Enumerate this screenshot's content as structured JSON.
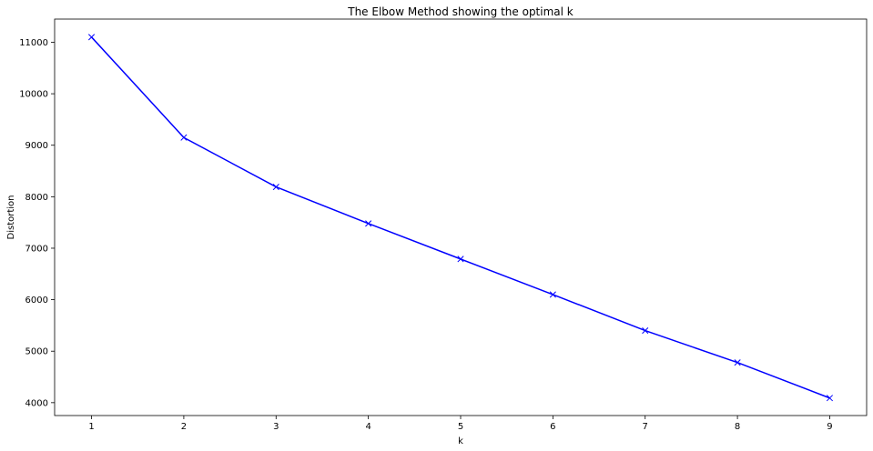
{
  "chart_data": {
    "type": "line",
    "title": "The Elbow Method showing the optimal k",
    "xlabel": "k",
    "ylabel": "Distortion",
    "x": [
      1,
      2,
      3,
      4,
      5,
      6,
      7,
      8,
      9
    ],
    "xticks": [
      "1",
      "2",
      "3",
      "4",
      "5",
      "6",
      "7",
      "8",
      "9"
    ],
    "yticks": [
      "4000",
      "5000",
      "6000",
      "7000",
      "8000",
      "9000",
      "10000",
      "11000"
    ],
    "ytick_values": [
      4000,
      5000,
      6000,
      7000,
      8000,
      9000,
      10000,
      11000
    ],
    "xlim": [
      0.6,
      9.4
    ],
    "ylim": [
      3750,
      11450
    ],
    "series": [
      {
        "values": [
          11100,
          9150,
          8190,
          7480,
          6790,
          6100,
          5400,
          4780,
          4090
        ],
        "color": "#0000ff",
        "marker": "x"
      }
    ],
    "grid": false
  }
}
